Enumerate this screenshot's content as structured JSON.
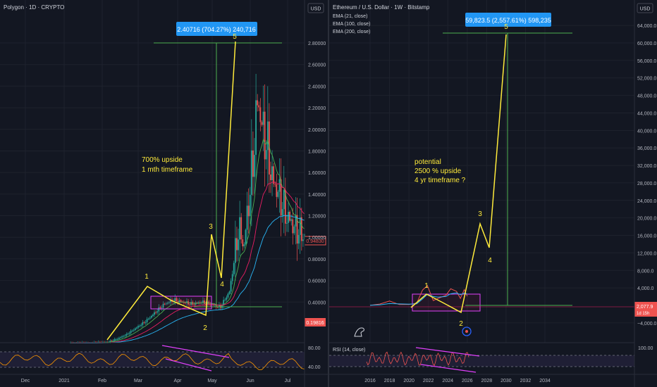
{
  "left_chart": {
    "header": "Polygon · 1D · CRYPTO",
    "currency_button": "USD",
    "measure_label": "2.40716 (704.27%) 240,716",
    "annotation_lines": [
      "700% upside",
      "1 mth timeframe"
    ],
    "wave_labels": [
      "1",
      "2",
      "3",
      "4",
      "5"
    ],
    "price_tags": {
      "current": "0.94830",
      "low": "0.19816"
    },
    "rsi_ticks": [
      "80.00",
      "40.00"
    ],
    "colors": {
      "accent": "#ffeb3b",
      "box": "#2962ff",
      "target": "#4caf50",
      "up": "#26a69a",
      "down": "#ef5350",
      "ema_green": "#4caf50",
      "ema_pink": "#e91e63",
      "ema_cyan": "#29b6f6",
      "rsi": "#ff9800"
    }
  },
  "right_chart": {
    "header": "Ethereum / U.S. Dollar · 1W · Bitstamp",
    "indicators": [
      "EMA (21, close)",
      "EMA (100, close)",
      "EMA (200, close)"
    ],
    "currency_button": "USD",
    "measure_label": "59,823.5 (2,557.61%) 598,235",
    "annotation_lines": [
      "potential",
      "2500 % upside",
      "4 yr timeframe ?"
    ],
    "wave_labels": [
      "1",
      "2",
      "3",
      "4",
      "5"
    ],
    "price_tags": {
      "current": "2,077.9",
      "current_sub": "1d 15h"
    },
    "rsi_label": "RSI (14, close)",
    "rsi_ticks": [
      "100.00"
    ],
    "x_ticks": [
      "2016",
      "2018",
      "2020",
      "2022",
      "2024",
      "2026",
      "2028",
      "2030",
      "2032",
      "2034"
    ]
  },
  "chart_data": [
    {
      "type": "line",
      "title": "Polygon · 1D · CRYPTO",
      "x_ticks": [
        "Dec",
        "2021",
        "Feb",
        "Mar",
        "Apr",
        "May",
        "Jun",
        "Jul"
      ],
      "y_ticks": [
        0.4,
        0.6,
        0.8,
        1.0,
        1.2,
        1.4,
        1.6,
        1.8,
        2.0,
        2.2,
        2.4,
        2.6,
        2.8
      ],
      "ylim": [
        -0.1,
        3.0
      ],
      "series": [
        {
          "points": [
            [
              0.0,
              0.02
            ],
            [
              0.04,
              0.02
            ],
            [
              0.08,
              0.02
            ],
            [
              0.12,
              0.025
            ],
            [
              0.16,
              0.03
            ],
            [
              0.2,
              0.06
            ],
            [
              0.24,
              0.1
            ],
            [
              0.28,
              0.16
            ],
            [
              0.32,
              0.22
            ],
            [
              0.36,
              0.3
            ],
            [
              0.4,
              0.38
            ],
            [
              0.44,
              0.42
            ],
            [
              0.48,
              0.4
            ],
            [
              0.52,
              0.38
            ],
            [
              0.56,
              0.4
            ],
            [
              0.6,
              0.38
            ],
            [
              0.64,
              0.35
            ],
            [
              0.68,
              0.5
            ],
            [
              0.7,
              0.8
            ],
            [
              0.72,
              1.1
            ],
            [
              0.74,
              0.9
            ],
            [
              0.76,
              1.3
            ],
            [
              0.78,
              1.7
            ],
            [
              0.8,
              2.3
            ],
            [
              0.82,
              2.0
            ],
            [
              0.84,
              1.85
            ],
            [
              0.86,
              1.55
            ],
            [
              0.88,
              1.45
            ],
            [
              0.9,
              1.35
            ],
            [
              0.92,
              1.2
            ],
            [
              0.94,
              1.15
            ],
            [
              0.96,
              1.08
            ],
            [
              0.98,
              1.05
            ],
            [
              1.0,
              1.0
            ]
          ]
        }
      ]
    },
    {
      "type": "line",
      "title": "Ethereum / U.S. Dollar · 1W · Bitstamp",
      "x_ticks": [
        "2016",
        "2018",
        "2020",
        "2022",
        "2024",
        "2026",
        "2028",
        "2030",
        "2032",
        "2034"
      ],
      "y_ticks": [
        -4000,
        4000,
        8000,
        12000,
        16000,
        20000,
        24000,
        28000,
        32000,
        36000,
        40000,
        44000,
        48000,
        52000,
        56000,
        60000,
        64000
      ],
      "ylim": [
        -6000,
        66000
      ],
      "series": [
        {
          "points": [
            [
              2016.0,
              10
            ],
            [
              2017.0,
              300
            ],
            [
              2018.0,
              1000
            ],
            [
              2019.0,
              200
            ],
            [
              2020.0,
              200
            ],
            [
              2020.8,
              500
            ],
            [
              2021.4,
              3500
            ],
            [
              2021.9,
              4500
            ],
            [
              2022.5,
              1100
            ],
            [
              2023.0,
              1600
            ],
            [
              2023.8,
              2300
            ],
            [
              2024.3,
              3800
            ],
            [
              2024.9,
              3200
            ],
            [
              2025.3,
              1600
            ],
            [
              2025.7,
              3600
            ],
            [
              2026.0,
              2077.9
            ]
          ]
        }
      ]
    }
  ]
}
